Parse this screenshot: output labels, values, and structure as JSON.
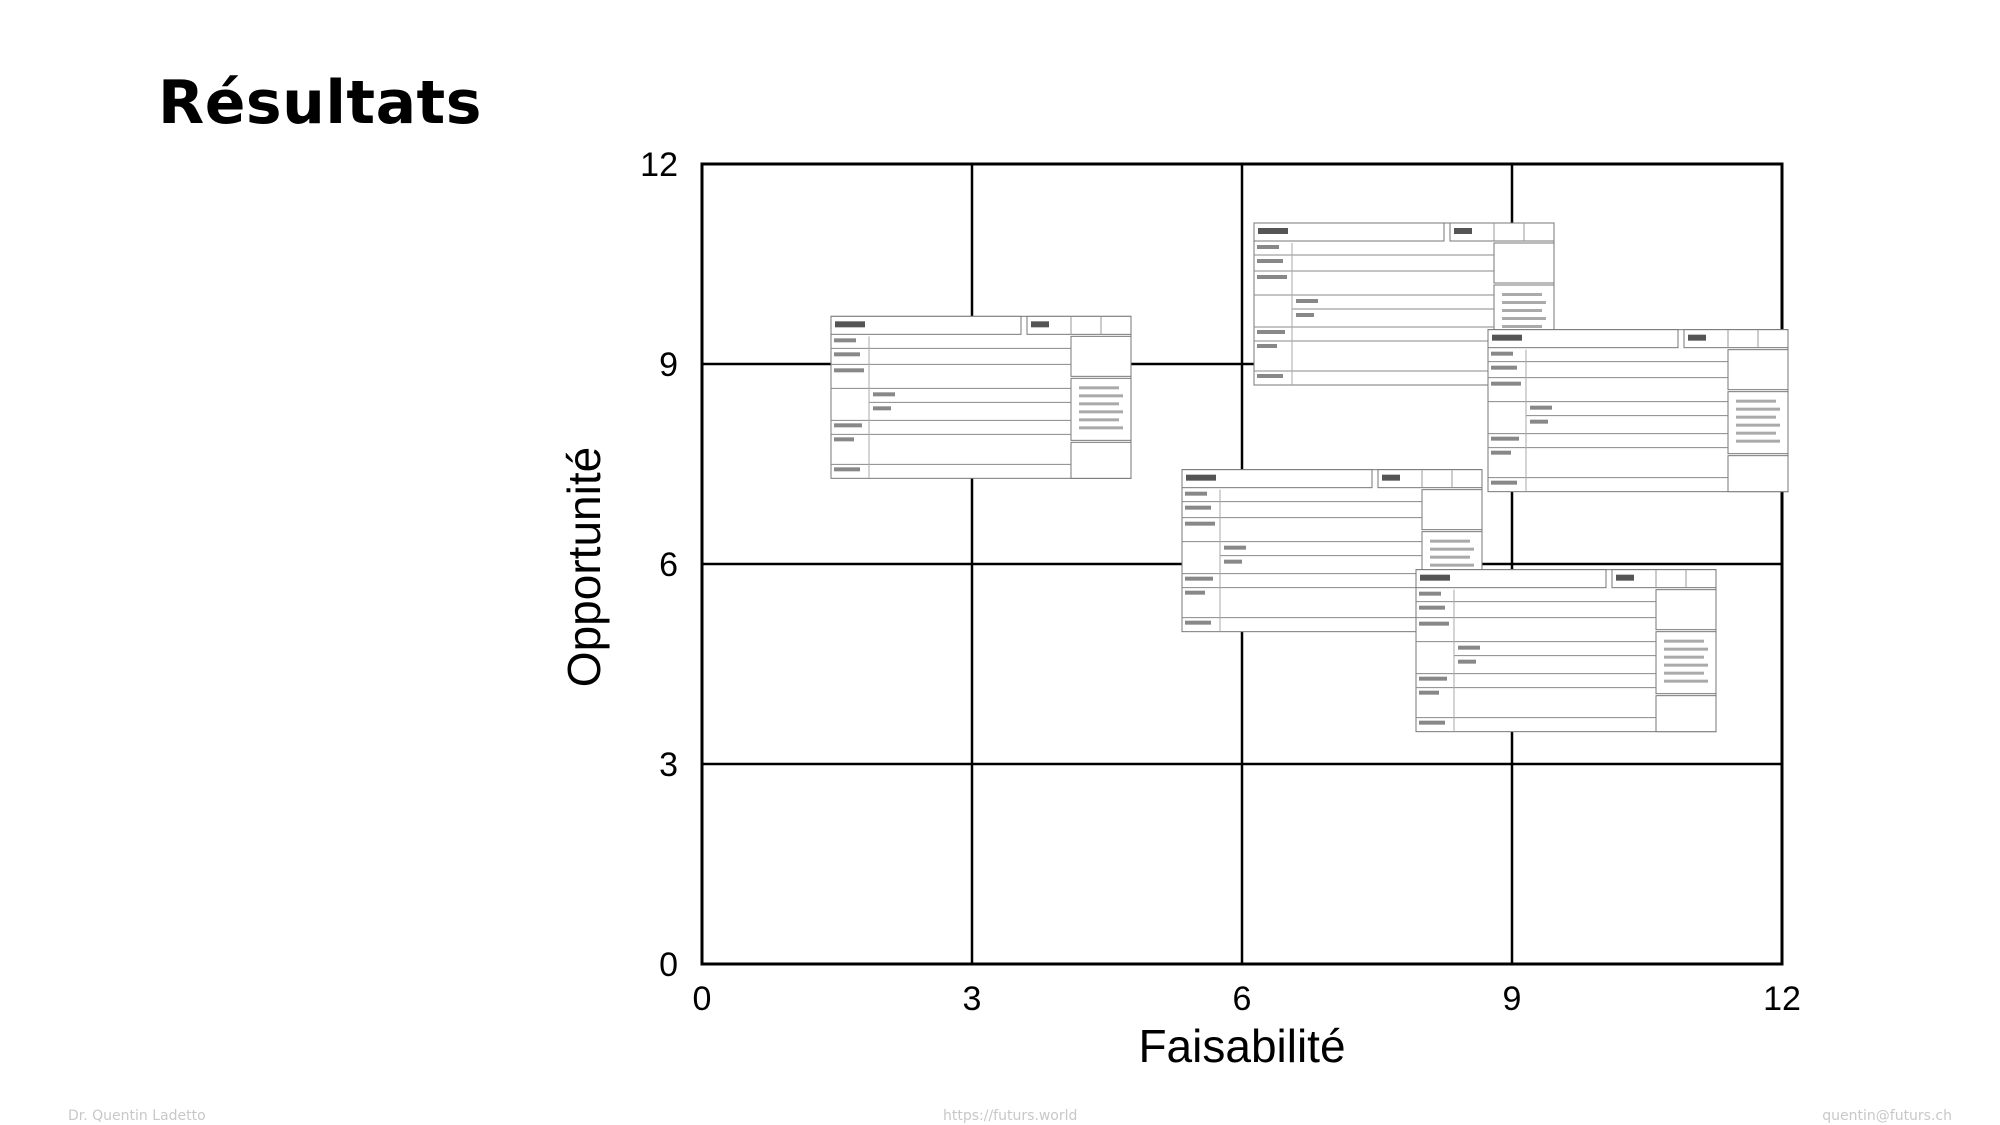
{
  "slide": {
    "title": "Résultats",
    "footer_left": "Dr. Quentin Ladetto",
    "footer_center": "https://futurs.world",
    "footer_right": "quentin@futurs.ch"
  },
  "chart_data": {
    "type": "scatter",
    "title": "",
    "xlabel": "Faisabilité",
    "ylabel": "Opportunité",
    "xlim": [
      0,
      12
    ],
    "ylim": [
      0,
      12
    ],
    "xticks": [
      0,
      3,
      6,
      9,
      12
    ],
    "yticks": [
      0,
      3,
      6,
      9,
      12
    ],
    "grid": true,
    "marker": "topic-card-thumbnail",
    "points": [
      {
        "x": 3.1,
        "y": 8.5
      },
      {
        "x": 7.8,
        "y": 9.9
      },
      {
        "x": 10.4,
        "y": 8.3
      },
      {
        "x": 7.0,
        "y": 6.2
      },
      {
        "x": 9.6,
        "y": 4.7
      }
    ]
  }
}
